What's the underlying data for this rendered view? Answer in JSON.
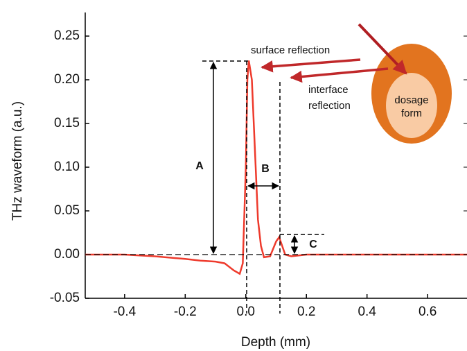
{
  "chart_data": {
    "type": "line",
    "xlabel": "Depth (mm)",
    "ylabel": "THz waveform (a.u.)",
    "x": [
      -0.53,
      -0.4,
      -0.3,
      -0.2,
      -0.15,
      -0.1,
      -0.07,
      -0.04,
      -0.02,
      -0.01,
      0,
      0.005,
      0.01,
      0.02,
      0.03,
      0.04,
      0.05,
      0.06,
      0.08,
      0.1,
      0.11,
      0.12,
      0.13,
      0.15,
      0.2,
      0.3,
      0.5,
      0.73
    ],
    "values": [
      0,
      0,
      -0.002,
      -0.005,
      -0.007,
      -0.008,
      -0.01,
      -0.018,
      -0.022,
      -0.01,
      0.1,
      0.2,
      0.222,
      0.2,
      0.12,
      0.04,
      0.01,
      -0.003,
      -0.002,
      0.015,
      0.02,
      0.01,
      0,
      -0.002,
      0,
      0,
      0,
      0
    ],
    "color": "#ee3a2c",
    "xlim": [
      -0.53,
      0.73
    ],
    "ylim": [
      -0.05,
      0.277
    ],
    "xticks": [
      -0.4,
      -0.2,
      {
        "value": 0,
        "label": "0.0"
      },
      0.2,
      0.4,
      0.6
    ],
    "yticks": [
      -0.05,
      {
        "value": 0,
        "label": "0.00"
      },
      {
        "value": 0.05,
        "label": "0.05"
      },
      {
        "value": 0.1,
        "label": "0.10"
      },
      {
        "value": 0.15,
        "label": "0.15"
      },
      {
        "value": 0.2,
        "label": "0.20"
      },
      0.25
    ],
    "annotations": {
      "surface": "surface reflection",
      "interface": [
        "interface",
        "reflection"
      ],
      "dosage": [
        "dosage",
        "form"
      ],
      "a": "A",
      "b": "B",
      "c": "C"
    }
  }
}
